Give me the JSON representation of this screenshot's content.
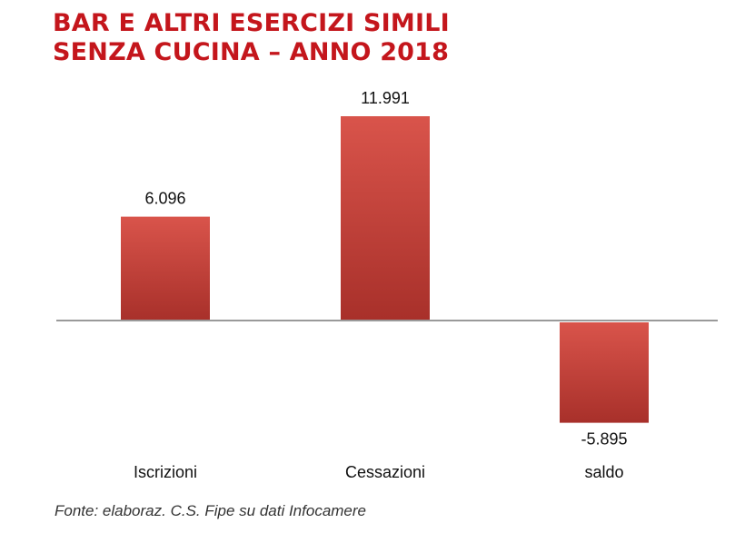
{
  "chart_data": {
    "type": "bar",
    "title_lines": [
      "BAR E ALTRI ESERCIZI SIMILI",
      "SENZA CUCINA – ANNO 2018"
    ],
    "categories": [
      "Iscrizioni",
      "Cessazioni",
      "saldo"
    ],
    "values": [
      6096,
      11991,
      -5895
    ],
    "value_labels": [
      "6.096",
      "11.991",
      "-5.895"
    ],
    "xlabel": "",
    "ylabel": "",
    "ylim": [
      -5895,
      11991
    ],
    "grid": false,
    "legend": "none",
    "colors": {
      "bar_top": "#d9544b",
      "bar_bottom": "#a8302a",
      "axis": "#9a9a9a",
      "title": "#c4161c"
    }
  },
  "source": "Fonte: elaboraz. C.S. Fipe su dati Infocamere"
}
